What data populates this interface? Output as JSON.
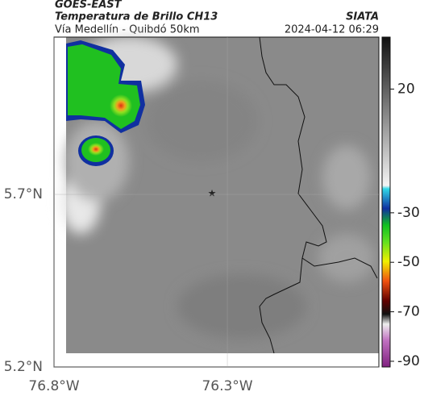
{
  "header": {
    "source": "GOES-EAST",
    "title": "Temperatura de Brillo CH13",
    "subtitle": "Vía Medellín - Quibdó 50km",
    "brand": "SIATA",
    "timestamp": "2024-04-12 06:29"
  },
  "map": {
    "xlim": [
      -76.8,
      -75.863
    ],
    "ylim": [
      5.2,
      6.156
    ],
    "xticks": [
      {
        "value": -76.8,
        "label": "76.8°W"
      },
      {
        "value": -76.3,
        "label": "76.3°W"
      }
    ],
    "yticks": [
      {
        "value": 5.2,
        "label": "5.2°N"
      },
      {
        "value": 5.7,
        "label": "5.7°N"
      }
    ]
  },
  "colorbar": {
    "lim": [
      -92.3,
      41
    ],
    "ticks": [
      20,
      -30,
      -50,
      -70,
      -90
    ]
  }
}
